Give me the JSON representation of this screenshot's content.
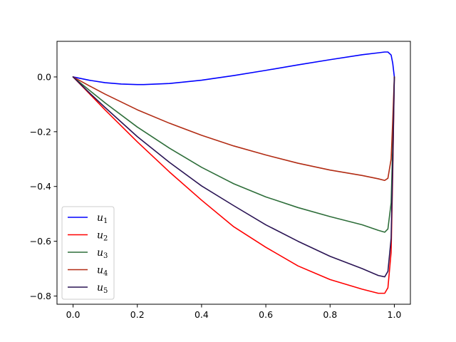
{
  "chart_data": {
    "type": "line",
    "title": "",
    "xlabel": "",
    "ylabel": "",
    "xlim": [
      -0.05,
      1.05
    ],
    "ylim": [
      -0.83,
      0.13
    ],
    "xticks": [
      0.0,
      0.2,
      0.4,
      0.6,
      0.8,
      1.0
    ],
    "xtick_labels": [
      "0.0",
      "0.2",
      "0.4",
      "0.6",
      "0.8",
      "1.0"
    ],
    "yticks": [
      0.0,
      -0.2,
      -0.4,
      -0.6,
      -0.8
    ],
    "ytick_labels": [
      "0.0",
      "−0.2",
      "−0.4",
      "−0.6",
      "−0.8"
    ],
    "grid": false,
    "legend_position": "lower-left",
    "series": [
      {
        "name": "u",
        "subscript": "1",
        "color": "#0000ff",
        "x": [
          0.0,
          0.05,
          0.1,
          0.15,
          0.2,
          0.22,
          0.3,
          0.4,
          0.5,
          0.6,
          0.7,
          0.8,
          0.9,
          0.95,
          0.97,
          0.98,
          0.99,
          0.995,
          1.0
        ],
        "y": [
          0.0,
          -0.012,
          -0.021,
          -0.026,
          -0.028,
          -0.028,
          -0.024,
          -0.012,
          0.005,
          0.024,
          0.044,
          0.063,
          0.081,
          0.088,
          0.091,
          0.091,
          0.08,
          0.05,
          0.0
        ]
      },
      {
        "name": "u",
        "subscript": "2",
        "color": "#ff0000",
        "x": [
          0.0,
          0.05,
          0.1,
          0.2,
          0.3,
          0.4,
          0.5,
          0.6,
          0.7,
          0.8,
          0.9,
          0.95,
          0.97,
          0.98,
          0.99,
          0.995,
          1.0
        ],
        "y": [
          0.0,
          -0.06,
          -0.121,
          -0.237,
          -0.347,
          -0.45,
          -0.547,
          -0.622,
          -0.69,
          -0.74,
          -0.775,
          -0.79,
          -0.79,
          -0.77,
          -0.64,
          -0.35,
          0.0
        ]
      },
      {
        "name": "u",
        "subscript": "3",
        "color": "#2e6e3a",
        "x": [
          0.0,
          0.05,
          0.1,
          0.2,
          0.3,
          0.4,
          0.5,
          0.6,
          0.7,
          0.8,
          0.9,
          0.95,
          0.97,
          0.98,
          0.99,
          0.995,
          1.0
        ],
        "y": [
          0.0,
          -0.048,
          -0.095,
          -0.183,
          -0.26,
          -0.33,
          -0.39,
          -0.438,
          -0.477,
          -0.51,
          -0.54,
          -0.56,
          -0.567,
          -0.555,
          -0.46,
          -0.25,
          0.0
        ]
      },
      {
        "name": "u",
        "subscript": "4",
        "color": "#b22c14",
        "x": [
          0.0,
          0.05,
          0.1,
          0.2,
          0.3,
          0.4,
          0.5,
          0.6,
          0.7,
          0.8,
          0.9,
          0.95,
          0.97,
          0.98,
          0.99,
          0.995,
          1.0
        ],
        "y": [
          0.0,
          -0.032,
          -0.063,
          -0.12,
          -0.169,
          -0.213,
          -0.252,
          -0.285,
          -0.315,
          -0.34,
          -0.36,
          -0.372,
          -0.378,
          -0.37,
          -0.3,
          -0.16,
          0.0
        ]
      },
      {
        "name": "u",
        "subscript": "5",
        "color": "#2a1454",
        "x": [
          0.0,
          0.05,
          0.1,
          0.2,
          0.3,
          0.4,
          0.5,
          0.6,
          0.7,
          0.8,
          0.9,
          0.95,
          0.97,
          0.98,
          0.99,
          0.995,
          1.0
        ],
        "y": [
          0.0,
          -0.057,
          -0.112,
          -0.218,
          -0.312,
          -0.398,
          -0.47,
          -0.54,
          -0.6,
          -0.655,
          -0.7,
          -0.725,
          -0.73,
          -0.71,
          -0.59,
          -0.32,
          0.0
        ]
      }
    ]
  }
}
